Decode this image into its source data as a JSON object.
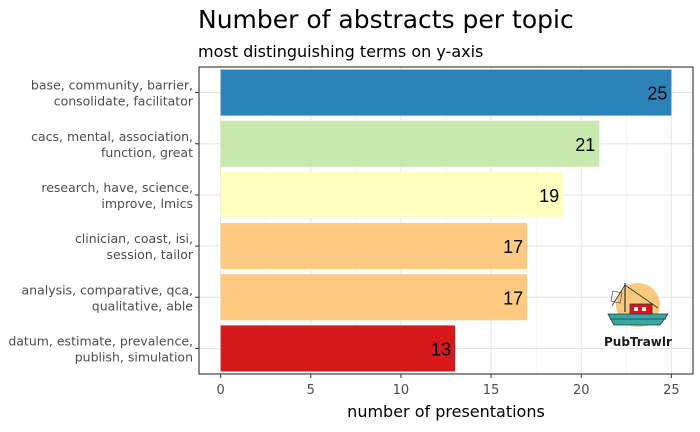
{
  "chart_data": {
    "type": "bar",
    "orientation": "horizontal",
    "title": "Number of abstracts per topic",
    "subtitle": "most distinguishing terms on y-axis",
    "xlabel": "number of presentations",
    "ylabel": "",
    "categories": [
      [
        "base, community, barrier,",
        "consolidate, facilitator"
      ],
      [
        "cacs, mental, association,",
        "function, great"
      ],
      [
        "research, have, science,",
        "improve, lmics"
      ],
      [
        "clinician, coast, isi,",
        "session, tailor"
      ],
      [
        "analysis, comparative, qca,",
        "qualitative, able"
      ],
      [
        "datum, estimate, prevalence,",
        "publish, simulation"
      ]
    ],
    "values": [
      25,
      21,
      19,
      17,
      17,
      13
    ],
    "colors": [
      "#2b83ba",
      "#c7e9ad",
      "#ffffbf",
      "#fec980",
      "#fec980",
      "#d7191c"
    ],
    "xlim": [
      -1.2,
      26.2
    ],
    "xticks": [
      0,
      5,
      10,
      15,
      20,
      25
    ],
    "grid": true,
    "legend": "none"
  },
  "logo": {
    "text": "PubTrawlr",
    "icon": "fishing-boat-icon"
  }
}
